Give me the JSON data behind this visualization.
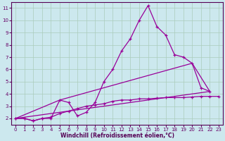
{
  "xlabel": "Windchill (Refroidissement éolien,°C)",
  "bg_color": "#cce8ee",
  "grid_color": "#aaccbb",
  "line_color": "#990099",
  "xlim": [
    -0.5,
    23.5
  ],
  "ylim": [
    1.5,
    11.5
  ],
  "xticks": [
    0,
    1,
    2,
    3,
    4,
    5,
    6,
    7,
    8,
    9,
    10,
    11,
    12,
    13,
    14,
    15,
    16,
    17,
    18,
    19,
    20,
    21,
    22,
    23
  ],
  "yticks": [
    2,
    3,
    4,
    5,
    6,
    7,
    8,
    9,
    10,
    11
  ],
  "series1_x": [
    0,
    1,
    2,
    3,
    4,
    5,
    6,
    7,
    8,
    9,
    10,
    11,
    12,
    13,
    14,
    15,
    16,
    17,
    18,
    19,
    20,
    21,
    22
  ],
  "series1_y": [
    2.0,
    2.0,
    1.8,
    2.0,
    2.0,
    3.5,
    3.3,
    2.2,
    2.5,
    3.3,
    5.0,
    6.0,
    7.5,
    8.5,
    10.0,
    11.2,
    9.5,
    8.8,
    7.2,
    7.0,
    6.5,
    4.5,
    4.2
  ],
  "series2_x": [
    0,
    1,
    2,
    3,
    4,
    5,
    6,
    7,
    8,
    9,
    10,
    11,
    12,
    13,
    14,
    15,
    16,
    17,
    18,
    19,
    20,
    21,
    22,
    23
  ],
  "series2_y": [
    2.0,
    2.0,
    1.8,
    2.0,
    2.1,
    2.4,
    2.6,
    2.8,
    3.0,
    3.1,
    3.2,
    3.4,
    3.5,
    3.5,
    3.6,
    3.6,
    3.65,
    3.7,
    3.7,
    3.7,
    3.75,
    3.8,
    3.8,
    3.8
  ],
  "series3_x": [
    0,
    5,
    20,
    22
  ],
  "series3_y": [
    2.0,
    3.5,
    6.5,
    4.2
  ],
  "series4_x": [
    0,
    22
  ],
  "series4_y": [
    2.0,
    4.2
  ]
}
